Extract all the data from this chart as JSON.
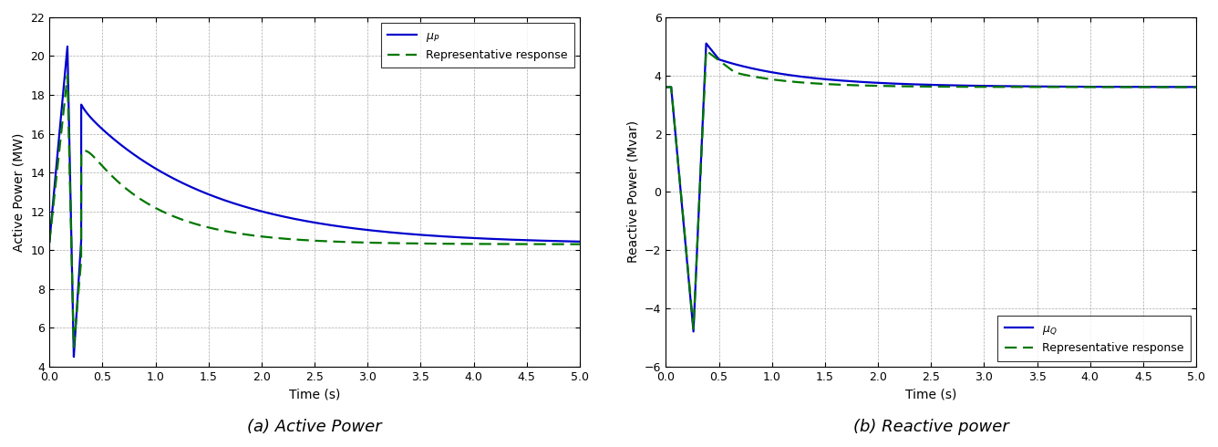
{
  "fig_width": 13.36,
  "fig_height": 4.9,
  "dpi": 100,
  "background_color": "#ffffff",
  "subplot_a": {
    "xlim": [
      0,
      5
    ],
    "ylim": [
      4,
      22
    ],
    "yticks": [
      4,
      6,
      8,
      10,
      12,
      14,
      16,
      18,
      20,
      22
    ],
    "xticks": [
      0,
      0.5,
      1,
      1.5,
      2,
      2.5,
      3,
      3.5,
      4,
      4.5,
      5
    ],
    "xlabel": "Time (s)",
    "ylabel": "Active Power (MW)",
    "caption": "(a) Active Power",
    "legend_loc": "upper right",
    "mu_p_color": "#0000cc",
    "rep_color": "#007700",
    "rep_label": "Representative response"
  },
  "subplot_b": {
    "xlim": [
      0,
      5
    ],
    "ylim": [
      -6,
      6
    ],
    "yticks": [
      -6,
      -4,
      -2,
      0,
      2,
      4,
      6
    ],
    "xticks": [
      0,
      0.5,
      1,
      1.5,
      2,
      2.5,
      3,
      3.5,
      4,
      4.5,
      5
    ],
    "xlabel": "Time (s)",
    "ylabel": "Reactive Power (Mvar)",
    "caption": "(b) Reactive power",
    "legend_loc": "lower right",
    "mu_q_color": "#0000cc",
    "rep_color": "#007700",
    "rep_label": "Representative response"
  },
  "caption_fontsize": 13,
  "axis_label_fontsize": 10,
  "tick_fontsize": 9,
  "legend_fontsize": 9,
  "line_width": 1.6,
  "grid_color": "#aaaaaa",
  "grid_linestyle": "--",
  "grid_linewidth": 0.5
}
